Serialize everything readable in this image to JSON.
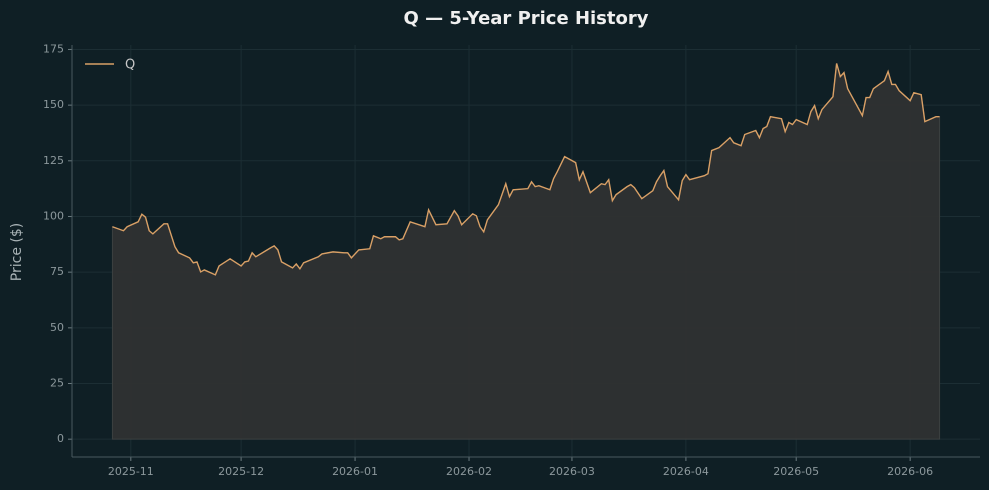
{
  "chart_data": {
    "type": "line",
    "title": "Q — 5-Year Price History",
    "ylabel": "Price ($)",
    "x": [
      "2025-10-27",
      "2025-10-30",
      "2025-10-31",
      "2025-11-03",
      "2025-11-04",
      "2025-11-05",
      "2025-11-06",
      "2025-11-07",
      "2025-11-10",
      "2025-11-11",
      "2025-11-13",
      "2025-11-14",
      "2025-11-17",
      "2025-11-18",
      "2025-11-19",
      "2025-11-20",
      "2025-11-21",
      "2025-11-24",
      "2025-11-25",
      "2025-11-28",
      "2025-12-01",
      "2025-12-02",
      "2025-12-03",
      "2025-12-04",
      "2025-12-05",
      "2025-12-09",
      "2025-12-10",
      "2025-12-11",
      "2025-12-12",
      "2025-12-15",
      "2025-12-16",
      "2025-12-17",
      "2025-12-18",
      "2025-12-22",
      "2025-12-23",
      "2025-12-26",
      "2025-12-29",
      "2025-12-30",
      "2025-12-31",
      "2026-01-02",
      "2026-01-05",
      "2026-01-06",
      "2026-01-08",
      "2026-01-09",
      "2026-01-12",
      "2026-01-13",
      "2026-01-14",
      "2026-01-16",
      "2026-01-20",
      "2026-01-21",
      "2026-01-23",
      "2026-01-26",
      "2026-01-28",
      "2026-01-29",
      "2026-01-30",
      "2026-02-02",
      "2026-02-03",
      "2026-02-04",
      "2026-02-05",
      "2026-02-06",
      "2026-02-09",
      "2026-02-11",
      "2026-02-12",
      "2026-02-13",
      "2026-02-17",
      "2026-02-18",
      "2026-02-19",
      "2026-02-20",
      "2026-02-23",
      "2026-02-24",
      "2026-02-25",
      "2026-02-27",
      "2026-03-02",
      "2026-03-03",
      "2026-03-04",
      "2026-03-06",
      "2026-03-09",
      "2026-03-10",
      "2026-03-11",
      "2026-03-12",
      "2026-03-13",
      "2026-03-16",
      "2026-03-17",
      "2026-03-18",
      "2026-03-20",
      "2026-03-23",
      "2026-03-24",
      "2026-03-25",
      "2026-03-26",
      "2026-03-27",
      "2026-03-30",
      "2026-03-31",
      "2026-04-01",
      "2026-04-02",
      "2026-04-06",
      "2026-04-07",
      "2026-04-08",
      "2026-04-10",
      "2026-04-13",
      "2026-04-14",
      "2026-04-16",
      "2026-04-17",
      "2026-04-20",
      "2026-04-21",
      "2026-04-22",
      "2026-04-23",
      "2026-04-24",
      "2026-04-27",
      "2026-04-28",
      "2026-04-29",
      "2026-04-30",
      "2026-05-01",
      "2026-05-04",
      "2026-05-05",
      "2026-05-06",
      "2026-05-07",
      "2026-05-08",
      "2026-05-11",
      "2026-05-12",
      "2026-05-13",
      "2026-05-14",
      "2026-05-15",
      "2026-05-19",
      "2026-05-20",
      "2026-05-21",
      "2026-05-22",
      "2026-05-25",
      "2026-05-26",
      "2026-05-27",
      "2026-05-28",
      "2026-05-29",
      "2026-06-01",
      "2026-06-02",
      "2026-06-04",
      "2026-06-05",
      "2026-06-08",
      "2026-06-09"
    ],
    "series": [
      {
        "name": "Q",
        "color": "#d9a066",
        "fill": "#2f3232",
        "values": [
          95.4,
          93.6,
          95.4,
          97.6,
          101,
          99.7,
          93.6,
          92.2,
          96.7,
          96.7,
          86.4,
          83.7,
          81.4,
          79.2,
          79.6,
          75.1,
          76,
          73.8,
          77.8,
          81,
          77.8,
          79.6,
          80,
          83.7,
          81.9,
          85.9,
          86.8,
          85,
          79.6,
          76.9,
          78.7,
          76.5,
          79.2,
          81.9,
          83.2,
          84.1,
          83.7,
          83.7,
          81.4,
          85,
          85.5,
          91.3,
          90,
          90.9,
          90.9,
          89.5,
          90,
          97.6,
          95.4,
          103,
          96.3,
          96.7,
          102.6,
          100.3,
          96.3,
          101.2,
          100.3,
          95.4,
          93.1,
          98.5,
          105.3,
          114.7,
          108.9,
          112,
          112.5,
          115.6,
          113.4,
          113.8,
          112,
          117,
          120.1,
          126.9,
          124.2,
          116.5,
          120.1,
          110.7,
          114.7,
          114.3,
          116.5,
          107.1,
          109.8,
          113.4,
          114.3,
          112.9,
          108,
          111.6,
          115.6,
          118.3,
          120.6,
          113.4,
          107.5,
          116.1,
          118.8,
          116.5,
          118.3,
          119.2,
          129.6,
          130.9,
          135.4,
          133.1,
          131.8,
          136.8,
          138.6,
          135.4,
          139.5,
          140.4,
          144.8,
          143.9,
          138.1,
          142.2,
          141.3,
          143.5,
          141.3,
          147.1,
          149.8,
          143.9,
          148,
          153.8,
          168.7,
          162.8,
          164.6,
          157.4,
          145.3,
          153.4,
          153.4,
          157.4,
          161,
          165.1,
          159.3,
          159.3,
          156.5,
          152,
          155.6,
          154.7,
          142.6,
          144.8,
          144.8
        ]
      }
    ],
    "xlim": [
      "2025-10-16",
      "2026-06-20"
    ],
    "xticks": [
      {
        "value": "2025-11-01",
        "label": "2025-11"
      },
      {
        "value": "2025-12-01",
        "label": "2025-12"
      },
      {
        "value": "2026-01-01",
        "label": "2026-01"
      },
      {
        "value": "2026-02-01",
        "label": "2026-02"
      },
      {
        "value": "2026-03-01",
        "label": "2026-03"
      },
      {
        "value": "2026-04-01",
        "label": "2026-04"
      },
      {
        "value": "2026-05-01",
        "label": "2026-05"
      },
      {
        "value": "2026-06-01",
        "label": "2026-06"
      }
    ],
    "ylim": [
      -8,
      177
    ],
    "yticks": [
      0,
      25,
      50,
      75,
      100,
      125,
      150,
      175
    ],
    "grid": true,
    "legend": "upper left",
    "area": true
  }
}
